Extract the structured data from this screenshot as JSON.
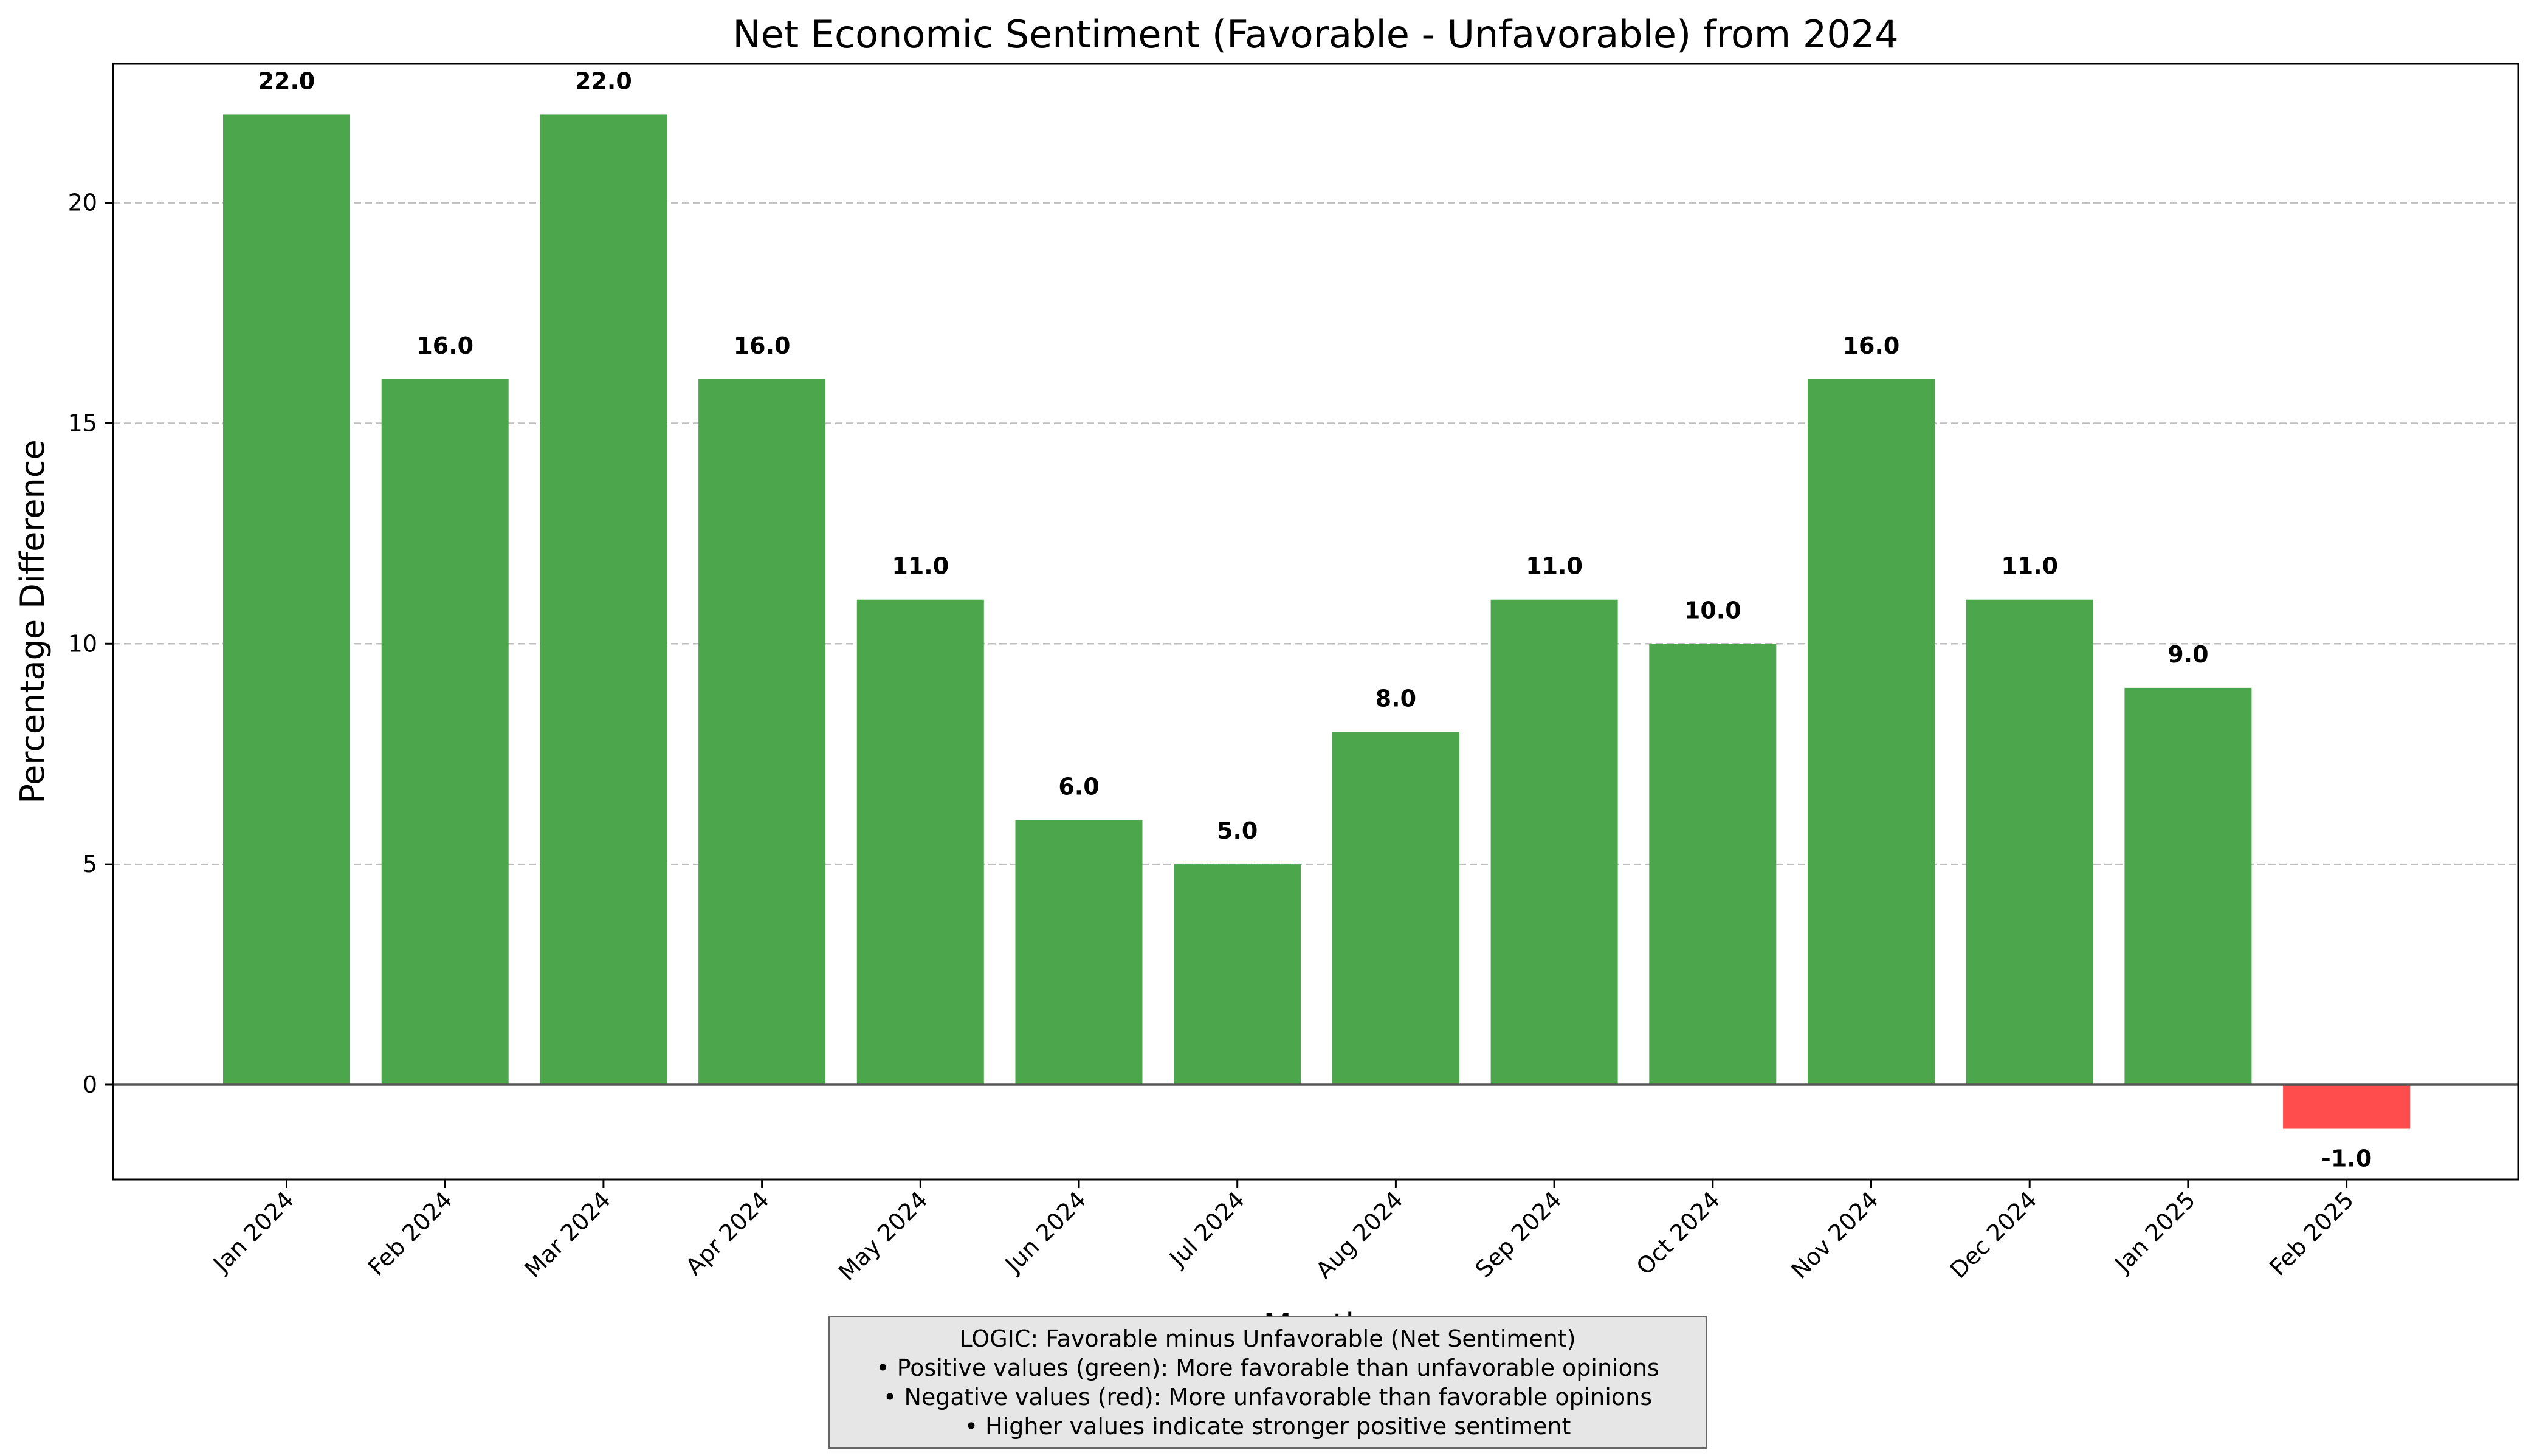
{
  "chart_data": {
    "type": "bar",
    "title": "Net Economic Sentiment (Favorable - Unfavorable) from 2024",
    "xlabel": "Month",
    "ylabel": "Percentage Difference",
    "categories": [
      "Jan 2024",
      "Feb 2024",
      "Mar 2024",
      "Apr 2024",
      "May 2024",
      "Jun 2024",
      "Jul 2024",
      "Aug 2024",
      "Sep 2024",
      "Oct 2024",
      "Nov 2024",
      "Dec 2024",
      "Jan 2025",
      "Feb 2025"
    ],
    "values": [
      22.0,
      16.0,
      22.0,
      16.0,
      11.0,
      6.0,
      5.0,
      8.0,
      11.0,
      10.0,
      16.0,
      11.0,
      9.0,
      -1.0
    ],
    "value_labels": [
      "22.0",
      "16.0",
      "22.0",
      "16.0",
      "11.0",
      "6.0",
      "5.0",
      "8.0",
      "11.0",
      "10.0",
      "16.0",
      "11.0",
      "9.0",
      "-1.0"
    ],
    "ylim": [
      -2.15,
      23.15
    ],
    "yticks": [
      0,
      5,
      10,
      15,
      20
    ],
    "grid": "y-dashed",
    "zero_line": true,
    "colors": {
      "positive": "#4ca64c",
      "negative": "#ff4d4d",
      "grid": "#bfbfbf",
      "zero_line": "#555555"
    }
  },
  "note": {
    "lines": [
      "LOGIC: Favorable minus Unfavorable (Net Sentiment)",
      "• Positive values (green): More favorable than unfavorable opinions",
      "• Negative values (red): More unfavorable than favorable opinions",
      "• Higher values indicate stronger positive sentiment"
    ]
  }
}
